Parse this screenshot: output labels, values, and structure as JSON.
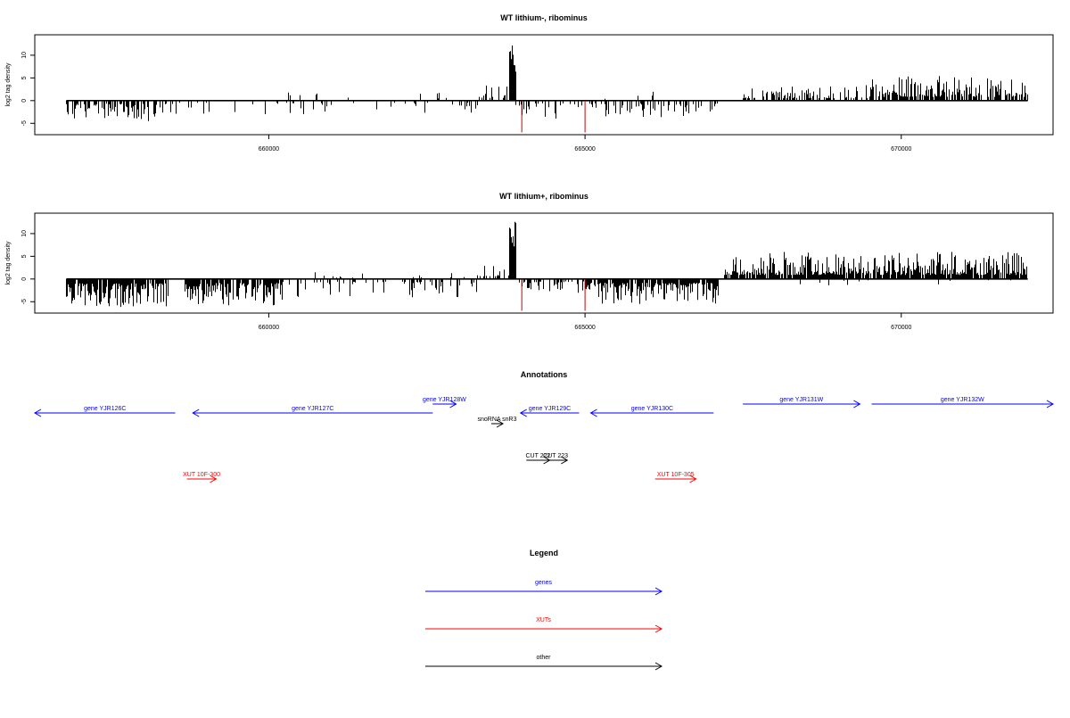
{
  "chart_data": [
    {
      "type": "bar",
      "title": "WT lithium-, ribominus",
      "ylabel": "log2 tag density",
      "xlabel": "",
      "xlim": [
        656300,
        672400
      ],
      "ylim": [
        -7.5,
        14.5
      ],
      "y_ticks": [
        -5,
        0,
        5,
        10
      ],
      "x_ticks": [
        660000,
        665000,
        670000
      ],
      "x_tick_labels": [
        "660000",
        "665000",
        "670000"
      ],
      "grid": false,
      "track": {
        "x_start": 656800,
        "x_end": 672000,
        "segments": [
          {
            "from": 656800,
            "to": 658400,
            "sign": -1,
            "max": 4.5,
            "density": 0.55
          },
          {
            "from": 658400,
            "to": 663300,
            "sign": -1,
            "max": 3.0,
            "density": 0.12
          },
          {
            "from": 660300,
            "to": 663200,
            "sign": 1,
            "max": 2.0,
            "density": 0.05
          },
          {
            "from": 663300,
            "to": 663800,
            "sign": 1,
            "max": 4.0,
            "density": 0.35
          },
          {
            "from": 663800,
            "to": 663900,
            "sign": 1,
            "max": 12.5,
            "density": 1.0,
            "min": 6.0
          },
          {
            "from": 663900,
            "to": 667100,
            "sign": -1,
            "max": 4.0,
            "density": 0.3
          },
          {
            "from": 665300,
            "to": 666500,
            "sign": 1,
            "max": 2.5,
            "density": 0.05
          },
          {
            "from": 667500,
            "to": 669500,
            "sign": 1,
            "max": 3.5,
            "density": 0.45
          },
          {
            "from": 669500,
            "to": 672000,
            "sign": 1,
            "max": 5.5,
            "density": 0.7
          }
        ],
        "red_marks": [
          {
            "x": 664000,
            "value": -7.0
          },
          {
            "x": 665000,
            "value": -7.0
          }
        ]
      }
    },
    {
      "type": "bar",
      "title": "WT lithium+, ribominus",
      "ylabel": "log2 tag density",
      "xlabel": "",
      "xlim": [
        656300,
        672400
      ],
      "ylim": [
        -7.5,
        14.5
      ],
      "y_ticks": [
        -5,
        0,
        5,
        10
      ],
      "x_ticks": [
        660000,
        665000,
        670000
      ],
      "x_tick_labels": [
        "660000",
        "665000",
        "670000"
      ],
      "grid": false,
      "track": {
        "x_start": 656800,
        "x_end": 672000,
        "segments": [
          {
            "from": 656800,
            "to": 658400,
            "sign": -1,
            "max": 6.5,
            "density": 0.9
          },
          {
            "from": 658650,
            "to": 660200,
            "sign": -1,
            "max": 6.0,
            "density": 0.8
          },
          {
            "from": 660200,
            "to": 663300,
            "sign": -1,
            "max": 4.0,
            "density": 0.3
          },
          {
            "from": 660500,
            "to": 663300,
            "sign": 1,
            "max": 2.0,
            "density": 0.08
          },
          {
            "from": 663300,
            "to": 663800,
            "sign": 1,
            "max": 4.0,
            "density": 0.4
          },
          {
            "from": 663800,
            "to": 663900,
            "sign": 1,
            "max": 13.5,
            "density": 1.0,
            "min": 6.0
          },
          {
            "from": 663900,
            "to": 665000,
            "sign": -1,
            "max": 3.5,
            "density": 0.35
          },
          {
            "from": 665000,
            "to": 667100,
            "sign": -1,
            "max": 5.5,
            "density": 0.9
          },
          {
            "from": 667200,
            "to": 672000,
            "sign": 1,
            "max": 6.0,
            "density": 0.9
          },
          {
            "from": 667200,
            "to": 672000,
            "sign": -1,
            "max": 1.5,
            "density": 0.04
          }
        ],
        "red_marks": [
          {
            "x": 664000,
            "value": -7.0
          },
          {
            "x": 665000,
            "value": -7.0
          }
        ]
      }
    }
  ],
  "annotations": {
    "title": "Annotations",
    "features": [
      {
        "label": "gene YJR126C",
        "category": "gene",
        "strand": "-",
        "start": 655700,
        "end": 658100,
        "row": 2
      },
      {
        "label": "gene YJR127C",
        "category": "gene",
        "strand": "-",
        "start": 658400,
        "end": 662500,
        "row": 2
      },
      {
        "label": "gene YJR128W",
        "category": "gene",
        "strand": "+",
        "start": 662500,
        "end": 662900,
        "row": 1
      },
      {
        "label": "gene YJR129C",
        "category": "gene",
        "strand": "-",
        "start": 664000,
        "end": 665000,
        "row": 2
      },
      {
        "label": "gene YJR130C",
        "category": "gene",
        "strand": "-",
        "start": 665200,
        "end": 667300,
        "row": 2
      },
      {
        "label": "gene YJR131W",
        "category": "gene",
        "strand": "+",
        "start": 667800,
        "end": 669800,
        "row": 1
      },
      {
        "label": "gene YJR132W",
        "category": "gene",
        "strand": "+",
        "start": 670000,
        "end": 673100,
        "row": 1
      },
      {
        "label": "snoRNA snR3",
        "category": "other",
        "strand": "+",
        "start": 663500,
        "end": 663700,
        "row": 3
      },
      {
        "label": "CUT 222",
        "category": "other",
        "strand": "+",
        "start": 664100,
        "end": 664500,
        "row": 4
      },
      {
        "label": "CUT 223",
        "category": "other",
        "strand": "+",
        "start": 664400,
        "end": 664800,
        "row": 4
      },
      {
        "label": "XUT 10F-300",
        "category": "xut",
        "strand": "+",
        "start": 658300,
        "end": 658800,
        "row": 5
      },
      {
        "label": "XUT 10F-305",
        "category": "xut",
        "strand": "+",
        "start": 666300,
        "end": 667000,
        "row": 5
      }
    ]
  },
  "legend": {
    "title": "Legend",
    "entries": [
      {
        "label": "genes",
        "category": "gene"
      },
      {
        "label": "XUTs",
        "category": "xut"
      },
      {
        "label": "other",
        "category": "other"
      }
    ]
  },
  "colors": {
    "gene": "#0000ff",
    "xut": "#ff0000",
    "other": "#000000",
    "signal": "#000000",
    "marker": "#cc0000"
  }
}
